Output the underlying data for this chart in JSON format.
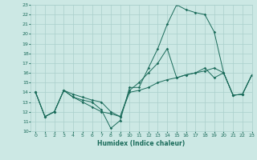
{
  "background_color": "#cce8e4",
  "grid_color": "#aacfcb",
  "line_color": "#1a6b5a",
  "xlabel": "Humidex (Indice chaleur)",
  "ylim": [
    10,
    23
  ],
  "xlim": [
    -0.5,
    23
  ],
  "yticks": [
    10,
    11,
    12,
    13,
    14,
    15,
    16,
    17,
    18,
    19,
    20,
    21,
    22,
    23
  ],
  "xticks": [
    0,
    1,
    2,
    3,
    4,
    5,
    6,
    7,
    8,
    9,
    10,
    11,
    12,
    13,
    14,
    15,
    16,
    17,
    18,
    19,
    20,
    21,
    22,
    23
  ],
  "lines": [
    {
      "x": [
        0,
        1,
        2,
        3,
        4,
        5,
        6,
        7,
        8,
        9,
        10,
        11,
        12,
        13,
        14,
        15,
        16,
        17,
        18,
        19,
        20,
        21,
        22,
        23
      ],
      "y": [
        14.0,
        11.5,
        12.0,
        14.2,
        13.5,
        13.2,
        13.0,
        12.2,
        10.3,
        11.1,
        14.5,
        14.5,
        16.5,
        18.5,
        21.0,
        23.0,
        22.5,
        22.2,
        22.0,
        20.2,
        16.0,
        13.7,
        13.8,
        15.8
      ]
    },
    {
      "x": [
        0,
        1,
        2,
        3,
        4,
        5,
        6,
        7,
        8,
        9,
        10,
        11,
        12,
        13,
        14,
        15,
        16,
        17,
        18,
        19,
        20,
        21,
        22,
        23
      ],
      "y": [
        14.0,
        11.5,
        12.0,
        14.2,
        13.8,
        13.5,
        13.2,
        13.0,
        12.0,
        11.5,
        14.2,
        15.0,
        16.0,
        17.0,
        18.5,
        15.5,
        15.8,
        16.0,
        16.5,
        15.5,
        16.0,
        13.7,
        13.8,
        15.8
      ]
    },
    {
      "x": [
        0,
        1,
        2,
        3,
        4,
        5,
        6,
        7,
        8,
        9,
        10,
        11,
        12,
        13,
        14,
        15,
        16,
        17,
        18,
        19,
        20,
        21,
        22,
        23
      ],
      "y": [
        14.0,
        11.5,
        12.0,
        14.2,
        13.5,
        13.0,
        12.5,
        12.0,
        11.8,
        11.5,
        14.0,
        14.2,
        14.5,
        15.0,
        15.3,
        15.5,
        15.8,
        16.0,
        16.2,
        16.5,
        16.0,
        13.7,
        13.8,
        15.8
      ]
    }
  ]
}
